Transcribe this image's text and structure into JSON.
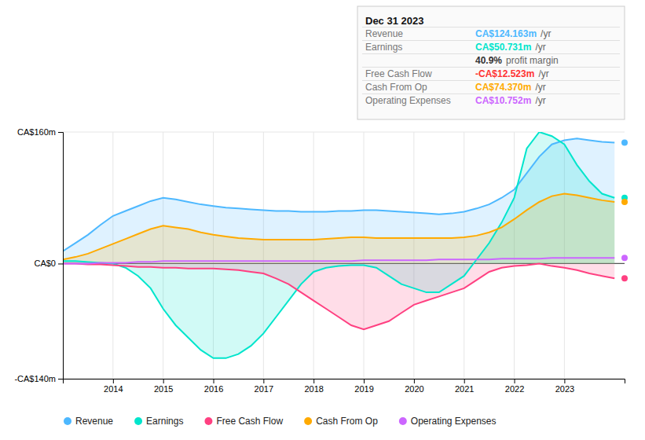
{
  "chart_data": {
    "type": "area",
    "x": [
      2013.0,
      2013.25,
      2013.5,
      2013.75,
      2014.0,
      2014.25,
      2014.5,
      2014.75,
      2015.0,
      2015.25,
      2015.5,
      2015.75,
      2016.0,
      2016.25,
      2016.5,
      2016.75,
      2017.0,
      2017.25,
      2017.5,
      2017.75,
      2018.0,
      2018.25,
      2018.5,
      2018.75,
      2019.0,
      2019.25,
      2019.5,
      2019.75,
      2020.0,
      2020.25,
      2020.5,
      2020.75,
      2021.0,
      2021.25,
      2021.5,
      2021.75,
      2022.0,
      2022.25,
      2022.5,
      2022.75,
      2023.0,
      2023.25,
      2023.5,
      2023.75,
      2024.0
    ],
    "series": [
      {
        "name": "Revenue",
        "color": "#4db8ff",
        "values": [
          15,
          25,
          35,
          47,
          58,
          64,
          70,
          76,
          80,
          78,
          75,
          72,
          70,
          68,
          67,
          66,
          65,
          64,
          64,
          63,
          63,
          63,
          64,
          64,
          65,
          65,
          64,
          63,
          62,
          61,
          60,
          61,
          63,
          67,
          72,
          80,
          90,
          110,
          130,
          145,
          150,
          152,
          150,
          148,
          147
        ]
      },
      {
        "name": "Earnings",
        "color": "#00e5cc",
        "values": [
          3,
          3,
          2,
          1,
          0,
          -5,
          -15,
          -30,
          -55,
          -75,
          -90,
          -105,
          -115,
          -115,
          -110,
          -100,
          -85,
          -65,
          -45,
          -25,
          -10,
          -5,
          -3,
          -2,
          -2,
          -5,
          -15,
          -25,
          -30,
          -35,
          -35,
          -25,
          -15,
          5,
          25,
          50,
          80,
          140,
          160,
          155,
          145,
          120,
          100,
          85,
          80
        ]
      },
      {
        "name": "Free Cash Flow",
        "color": "#ff4081",
        "values": [
          0,
          0,
          -1,
          -1,
          -2,
          -3,
          -4,
          -4,
          -5,
          -5,
          -6,
          -6,
          -6,
          -7,
          -8,
          -10,
          -12,
          -18,
          -25,
          -35,
          -45,
          -55,
          -65,
          -75,
          -80,
          -75,
          -70,
          -60,
          -50,
          -45,
          -40,
          -35,
          -30,
          -20,
          -10,
          -5,
          -3,
          -2,
          0,
          -3,
          -5,
          -8,
          -12,
          -15,
          -18
        ]
      },
      {
        "name": "Cash From Op",
        "color": "#ffaa00",
        "values": [
          5,
          8,
          12,
          18,
          24,
          30,
          36,
          42,
          46,
          44,
          42,
          38,
          35,
          33,
          31,
          30,
          29,
          29,
          29,
          29,
          29,
          30,
          31,
          32,
          32,
          31,
          31,
          31,
          31,
          31,
          31,
          31,
          32,
          34,
          38,
          44,
          54,
          65,
          75,
          82,
          85,
          83,
          80,
          77,
          75
        ]
      },
      {
        "name": "Operating Expenses",
        "color": "#cc66ff",
        "type": "line",
        "values": [
          0,
          0,
          0,
          1,
          1,
          1,
          2,
          2,
          3,
          3,
          3,
          3,
          3,
          3,
          3,
          3,
          3,
          3,
          3,
          3,
          3,
          3,
          3,
          3,
          4,
          4,
          4,
          4,
          4,
          4,
          5,
          5,
          5,
          5,
          5,
          6,
          6,
          6,
          6,
          7,
          7,
          7,
          7,
          7,
          7
        ]
      }
    ],
    "xlim": [
      2013.0,
      2024.2
    ],
    "xticks": [
      2014,
      2015,
      2016,
      2017,
      2018,
      2019,
      2020,
      2021,
      2022,
      2023
    ],
    "ylim": [
      -140,
      160
    ],
    "yticks": [
      {
        "value": 160,
        "label": "CA$160m"
      },
      {
        "value": 0,
        "label": "CA$0"
      },
      {
        "value": -140,
        "label": "-CA$140m"
      }
    ],
    "grid": true,
    "legend": "bottom",
    "annotations": [
      {
        "text": "Dec 31 2023"
      },
      {
        "label": "Revenue",
        "text": "CA$124.163m",
        "suffix": "/yr",
        "color": "#4db8ff"
      },
      {
        "label": "Earnings",
        "text": "CA$50.731m",
        "suffix": "/yr",
        "color": "#00e5cc"
      },
      {
        "text": "40.9%",
        "suffix": "profit margin"
      },
      {
        "label": "Free Cash Flow",
        "text": "-CA$12.523m",
        "suffix": "/yr",
        "color": "#ff3333"
      },
      {
        "label": "Cash From Op",
        "text": "CA$74.370m",
        "suffix": "/yr",
        "color": "#ffaa00"
      },
      {
        "label": "Operating Expenses",
        "text": "CA$10.752m",
        "suffix": "/yr",
        "color": "#cc66ff"
      }
    ]
  }
}
